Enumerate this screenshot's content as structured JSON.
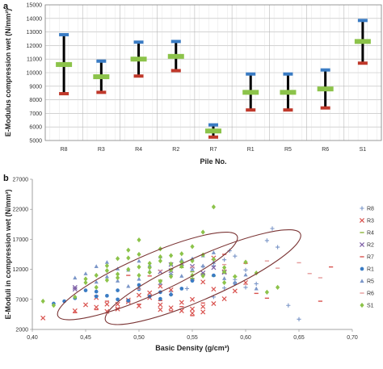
{
  "chart_data": [
    {
      "panel": "a",
      "type": "range",
      "title": "",
      "xlabel": "Pile No.",
      "ylabel": "E-Modulus compression wet (N/mm²)",
      "ylim": [
        5000,
        15000
      ],
      "yticks": [
        5000,
        6000,
        7000,
        8000,
        9000,
        10000,
        11000,
        12000,
        13000,
        14000,
        15000
      ],
      "grid": true,
      "categories": [
        "R8",
        "R3",
        "R4",
        "R2",
        "R7",
        "R1",
        "R5",
        "R6",
        "S1"
      ],
      "max": [
        12800,
        10850,
        12250,
        12300,
        6150,
        9900,
        9900,
        10200,
        13850
      ],
      "mean": [
        10600,
        9700,
        11000,
        11200,
        5700,
        8550,
        8550,
        8800,
        12300
      ],
      "min": [
        8450,
        8550,
        9750,
        10150,
        5250,
        7250,
        7250,
        7400,
        10700
      ],
      "colors": {
        "max": "#3a7cc4",
        "mean": "#8cc34a",
        "min": "#c0392b",
        "line": "#000000"
      }
    },
    {
      "panel": "b",
      "type": "scatter",
      "title": "",
      "xlabel": "Basic Density (g/cm³)",
      "ylabel": "E-Moduli in compression wet (N/mm²)",
      "xlim": [
        0.4,
        0.7
      ],
      "xticks": [
        "0,40",
        "0,45",
        "0,50",
        "0,55",
        "0,60",
        "0,65",
        "0,70"
      ],
      "ylim": [
        2000,
        27000
      ],
      "yticks": [
        2000,
        7000,
        12000,
        17000,
        22000,
        27000
      ],
      "grid": false,
      "legend_position": "right",
      "series": [
        {
          "name": "R8",
          "marker": "plus",
          "color": "#7b96c8",
          "points": [
            [
              0.55,
              10400
            ],
            [
              0.56,
              11200
            ],
            [
              0.57,
              12600
            ],
            [
              0.58,
              13600
            ],
            [
              0.585,
              15100
            ],
            [
              0.59,
              14200
            ],
            [
              0.6,
              11900
            ],
            [
              0.61,
              9600
            ],
            [
              0.62,
              16800
            ],
            [
              0.625,
              18800
            ],
            [
              0.63,
              15700
            ],
            [
              0.58,
              8900
            ],
            [
              0.57,
              7400
            ],
            [
              0.53,
              8300
            ],
            [
              0.64,
              6000
            ],
            [
              0.65,
              3700
            ],
            [
              0.6,
              9000
            ],
            [
              0.59,
              10300
            ],
            [
              0.56,
              12500
            ],
            [
              0.545,
              8800
            ]
          ]
        },
        {
          "name": "R3",
          "marker": "x",
          "color": "#d9534f",
          "points": [
            [
              0.41,
              3900
            ],
            [
              0.44,
              5100
            ],
            [
              0.46,
              5700
            ],
            [
              0.47,
              6200
            ],
            [
              0.48,
              5400
            ],
            [
              0.49,
              6900
            ],
            [
              0.5,
              5900
            ],
            [
              0.51,
              7300
            ],
            [
              0.52,
              6100
            ],
            [
              0.53,
              5600
            ],
            [
              0.54,
              6500
            ],
            [
              0.55,
              5400
            ],
            [
              0.56,
              4900
            ],
            [
              0.57,
              6300
            ],
            [
              0.58,
              7100
            ],
            [
              0.59,
              8400
            ],
            [
              0.6,
              9800
            ],
            [
              0.58,
              11600
            ],
            [
              0.57,
              13900
            ],
            [
              0.56,
              9900
            ],
            [
              0.53,
              8600
            ],
            [
              0.52,
              9200
            ],
            [
              0.51,
              8100
            ],
            [
              0.5,
              7700
            ],
            [
              0.49,
              6600
            ],
            [
              0.55,
              7000
            ],
            [
              0.54,
              5100
            ],
            [
              0.52,
              5300
            ],
            [
              0.48,
              6200
            ],
            [
              0.47,
              5000
            ],
            [
              0.46,
              7300
            ],
            [
              0.45,
              6100
            ],
            [
              0.56,
              5800
            ],
            [
              0.55,
              4700
            ],
            [
              0.57,
              8700
            ]
          ]
        },
        {
          "name": "R4",
          "marker": "dash",
          "color": "#8cb43a",
          "points": [
            [
              0.52,
              10200
            ],
            [
              0.53,
              11100
            ],
            [
              0.54,
              12300
            ],
            [
              0.55,
              11600
            ],
            [
              0.56,
              11300
            ],
            [
              0.57,
              10900
            ],
            [
              0.58,
              11400
            ],
            [
              0.59,
              10800
            ],
            [
              0.55,
              10500
            ],
            [
              0.53,
              12000
            ]
          ]
        },
        {
          "name": "R2",
          "marker": "x",
          "color": "#7d5fa6",
          "points": [
            [
              0.44,
              9000
            ],
            [
              0.52,
              11600
            ],
            [
              0.53,
              12800
            ],
            [
              0.54,
              13000
            ],
            [
              0.55,
              12500
            ],
            [
              0.56,
              11400
            ],
            [
              0.57,
              12300
            ],
            [
              0.58,
              11500
            ],
            [
              0.53,
              11800
            ],
            [
              0.44,
              8700
            ]
          ]
        },
        {
          "name": "R7",
          "marker": "dash",
          "color": "#d9534f",
          "points": [
            [
              0.44,
              4800
            ],
            [
              0.46,
              5300
            ],
            [
              0.48,
              5500
            ],
            [
              0.5,
              6200
            ],
            [
              0.52,
              6800
            ],
            [
              0.54,
              5800
            ],
            [
              0.55,
              4300
            ],
            [
              0.47,
              6700
            ],
            [
              0.53,
              5100
            ],
            [
              0.56,
              6400
            ],
            [
              0.6,
              13000
            ],
            [
              0.61,
              8000
            ],
            [
              0.62,
              7200
            ],
            [
              0.67,
              6700
            ],
            [
              0.68,
              12400
            ],
            [
              0.51,
              10900
            ],
            [
              0.49,
              11000
            ],
            [
              0.58,
              14500
            ],
            [
              0.55,
              10200
            ],
            [
              0.53,
              7800
            ]
          ]
        },
        {
          "name": "R1",
          "marker": "circle",
          "color": "#3a7cc4",
          "points": [
            [
              0.42,
              6300
            ],
            [
              0.43,
              6700
            ],
            [
              0.44,
              7200
            ],
            [
              0.45,
              8500
            ],
            [
              0.46,
              8300
            ],
            [
              0.47,
              7600
            ],
            [
              0.48,
              7000
            ],
            [
              0.49,
              6800
            ],
            [
              0.5,
              8700
            ],
            [
              0.51,
              7500
            ],
            [
              0.52,
              8200
            ],
            [
              0.53,
              7800
            ],
            [
              0.54,
              8800
            ],
            [
              0.55,
              10100
            ],
            [
              0.57,
              11000
            ],
            [
              0.59,
              9700
            ],
            [
              0.5,
              9400
            ],
            [
              0.48,
              8500
            ],
            [
              0.52,
              7100
            ],
            [
              0.46,
              7500
            ]
          ]
        },
        {
          "name": "R5",
          "marker": "triangle",
          "color": "#7b96c8",
          "points": [
            [
              0.45,
              11300
            ],
            [
              0.46,
              12500
            ],
            [
              0.47,
              13200
            ],
            [
              0.48,
              12100
            ],
            [
              0.49,
              11900
            ],
            [
              0.5,
              13400
            ],
            [
              0.51,
              12700
            ],
            [
              0.52,
              14100
            ],
            [
              0.53,
              12900
            ],
            [
              0.54,
              13600
            ],
            [
              0.55,
              13800
            ],
            [
              0.56,
              12600
            ],
            [
              0.57,
              13200
            ],
            [
              0.58,
              10500
            ],
            [
              0.59,
              9800
            ],
            [
              0.6,
              11100
            ],
            [
              0.61,
              8800
            ],
            [
              0.48,
              10100
            ],
            [
              0.5,
              10400
            ],
            [
              0.52,
              9700
            ],
            [
              0.54,
              10900
            ],
            [
              0.49,
              9200
            ],
            [
              0.53,
              11300
            ],
            [
              0.55,
              12000
            ],
            [
              0.57,
              14800
            ],
            [
              0.51,
              11700
            ],
            [
              0.47,
              10800
            ],
            [
              0.56,
              14300
            ],
            [
              0.44,
              10600
            ],
            [
              0.46,
              9900
            ]
          ]
        },
        {
          "name": "R6",
          "marker": "dash",
          "color": "#e59a9a",
          "points": [
            [
              0.5,
              8700
            ],
            [
              0.52,
              11800
            ],
            [
              0.55,
              12400
            ],
            [
              0.58,
              12800
            ],
            [
              0.6,
              9500
            ],
            [
              0.62,
              13400
            ],
            [
              0.63,
              12200
            ],
            [
              0.65,
              13100
            ],
            [
              0.66,
              11300
            ],
            [
              0.67,
              10600
            ]
          ]
        },
        {
          "name": "S1",
          "marker": "diamond",
          "color": "#8cc34a",
          "points": [
            [
              0.41,
              6700
            ],
            [
              0.42,
              6000
            ],
            [
              0.44,
              7400
            ],
            [
              0.45,
              9800
            ],
            [
              0.46,
              9000
            ],
            [
              0.47,
              11800
            ],
            [
              0.48,
              10600
            ],
            [
              0.49,
              12000
            ],
            [
              0.5,
              12400
            ],
            [
              0.51,
              13000
            ],
            [
              0.52,
              14100
            ],
            [
              0.53,
              12900
            ],
            [
              0.54,
              14600
            ],
            [
              0.55,
              15800
            ],
            [
              0.56,
              18200
            ],
            [
              0.57,
              22400
            ],
            [
              0.58,
              12300
            ],
            [
              0.59,
              10800
            ],
            [
              0.6,
              13200
            ],
            [
              0.61,
              11400
            ],
            [
              0.62,
              8200
            ],
            [
              0.63,
              9000
            ],
            [
              0.54,
              12500
            ],
            [
              0.53,
              10800
            ],
            [
              0.52,
              13400
            ],
            [
              0.51,
              11500
            ],
            [
              0.5,
              14500
            ],
            [
              0.49,
              15200
            ],
            [
              0.48,
              13800
            ],
            [
              0.47,
              12600
            ],
            [
              0.46,
              11000
            ],
            [
              0.45,
              10400
            ],
            [
              0.55,
              13400
            ],
            [
              0.56,
              14400
            ],
            [
              0.57,
              13700
            ],
            [
              0.58,
              11600
            ],
            [
              0.52,
              15400
            ],
            [
              0.5,
              16900
            ],
            [
              0.51,
              12300
            ],
            [
              0.53,
              11900
            ],
            [
              0.54,
              13200
            ],
            [
              0.55,
              11000
            ],
            [
              0.49,
              13900
            ],
            [
              0.48,
              11200
            ],
            [
              0.47,
              10200
            ],
            [
              0.5,
              11000
            ],
            [
              0.52,
              10000
            ],
            [
              0.58,
              9800
            ],
            [
              0.56,
              10900
            ],
            [
              0.53,
              14300
            ]
          ]
        }
      ],
      "ellipses": [
        {
          "center": [
            0.508,
            10900
          ],
          "semi_axis_x": 0.092,
          "semi_axis_y": 3300,
          "tilt_deg": -24,
          "color": "#7b3535"
        },
        {
          "center": [
            0.56,
            10700
          ],
          "semi_axis_x": 0.1,
          "semi_axis_y": 3500,
          "tilt_deg": -24,
          "color": "#7b3535"
        }
      ]
    }
  ]
}
